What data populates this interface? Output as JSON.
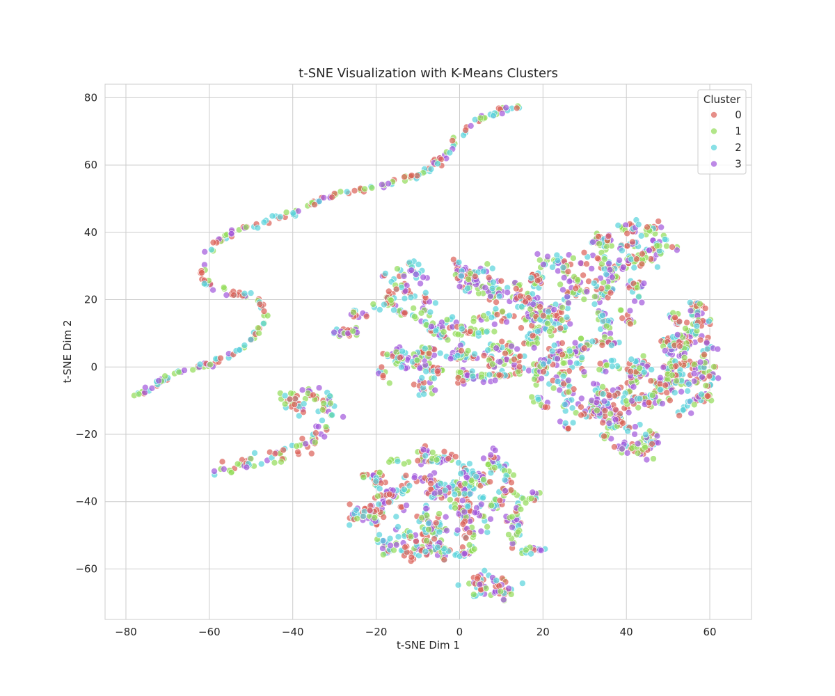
{
  "chart_data": {
    "type": "scatter",
    "title": "t-SNE Visualization with K-Means Clusters",
    "xlabel": "t-SNE Dim 1",
    "ylabel": "t-SNE Dim 2",
    "xlim": [
      -85,
      70
    ],
    "ylim": [
      -75,
      84
    ],
    "x_ticks": [
      -80,
      -60,
      -40,
      -20,
      0,
      20,
      40,
      60
    ],
    "y_ticks": [
      -60,
      -40,
      -20,
      0,
      20,
      40,
      60,
      80
    ],
    "grid": true,
    "legend_title": "Cluster",
    "legend_position": "top-right",
    "point_alpha": 0.7,
    "series": [
      {
        "name": "0",
        "color": "#db5f57"
      },
      {
        "name": "1",
        "color": "#91db57"
      },
      {
        "name": "2",
        "color": "#57d3db"
      },
      {
        "name": "3",
        "color": "#a157db"
      }
    ],
    "point_groups": [
      {
        "shape": "curve",
        "n": 260,
        "jitter": 0.5,
        "path": [
          [
            -77,
            -9
          ],
          [
            -72,
            -4
          ],
          [
            -66,
            -1
          ],
          [
            -60,
            1
          ],
          [
            -54,
            4
          ],
          [
            -50,
            8
          ],
          [
            -47,
            13
          ],
          [
            -47,
            18
          ],
          [
            -50,
            21
          ],
          [
            -56,
            22
          ],
          [
            -61,
            25
          ],
          [
            -62,
            30
          ],
          [
            -59,
            36
          ],
          [
            -54,
            40
          ],
          [
            -48,
            43
          ],
          [
            -42,
            45
          ],
          [
            -36,
            48
          ],
          [
            -30,
            51
          ],
          [
            -22,
            53
          ],
          [
            -15,
            55
          ],
          [
            -8,
            58
          ],
          [
            -3,
            63
          ],
          [
            0,
            69
          ],
          [
            4,
            73
          ],
          [
            10,
            76
          ],
          [
            15,
            77
          ]
        ]
      },
      {
        "shape": "curve",
        "n": 120,
        "jitter": 1.2,
        "path": [
          [
            -58,
            -32
          ],
          [
            -50,
            -28
          ],
          [
            -43,
            -26
          ],
          [
            -37,
            -23
          ],
          [
            -32,
            -18
          ],
          [
            -31,
            -13
          ],
          [
            -33,
            -9
          ],
          [
            -37,
            -7
          ],
          [
            -41,
            -9
          ],
          [
            -41,
            -12
          ],
          [
            -36,
            -12
          ]
        ]
      },
      {
        "shape": "blob",
        "n": 650,
        "cx": -2,
        "cy": 12,
        "rx": 26,
        "ry": 20
      },
      {
        "shape": "blob",
        "n": 320,
        "cx": 30,
        "cy": 22,
        "rx": 16,
        "ry": 15
      },
      {
        "shape": "blob",
        "n": 240,
        "cx": 30,
        "cy": -5,
        "rx": 12,
        "ry": 14
      },
      {
        "shape": "blob",
        "n": 280,
        "cx": 45,
        "cy": -12,
        "rx": 12,
        "ry": 16
      },
      {
        "shape": "blob",
        "n": 230,
        "cx": 56,
        "cy": 4,
        "rx": 7,
        "ry": 15
      },
      {
        "shape": "blob",
        "n": 130,
        "cx": 42,
        "cy": 37,
        "rx": 8,
        "ry": 6
      },
      {
        "shape": "blob",
        "n": 650,
        "cx": -2,
        "cy": -44,
        "rx": 24,
        "ry": 20
      },
      {
        "shape": "blob",
        "n": 60,
        "cx": 7,
        "cy": -65,
        "rx": 6,
        "ry": 3
      }
    ]
  }
}
